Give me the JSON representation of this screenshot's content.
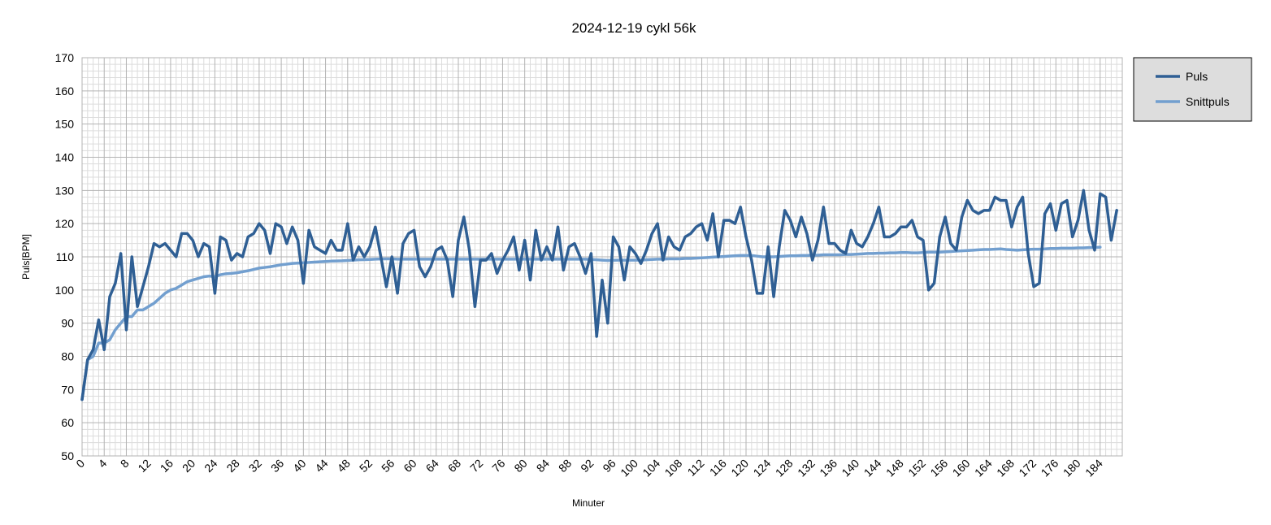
{
  "chart_data": {
    "type": "line",
    "title": "2024-12-19 cykl 56k",
    "xlabel": "Minuter",
    "ylabel": "Puls[BPM]",
    "xlim": [
      0,
      188
    ],
    "ylim": [
      50,
      170
    ],
    "y_ticks": [
      50,
      60,
      70,
      80,
      90,
      100,
      110,
      120,
      130,
      140,
      150,
      160,
      170
    ],
    "x_ticks": [
      0,
      4,
      8,
      12,
      16,
      20,
      24,
      28,
      32,
      36,
      40,
      44,
      48,
      52,
      56,
      60,
      64,
      68,
      72,
      76,
      80,
      84,
      88,
      92,
      96,
      100,
      104,
      108,
      112,
      116,
      120,
      124,
      128,
      132,
      136,
      140,
      144,
      148,
      152,
      156,
      160,
      164,
      168,
      172,
      176,
      180,
      184
    ],
    "grid": true,
    "legend_position": "right",
    "series": [
      {
        "name": "Puls",
        "color": "#2f5f94",
        "values": [
          67,
          79,
          82,
          91,
          82,
          98,
          102,
          111,
          88,
          110,
          95,
          101,
          107,
          114,
          113,
          114,
          112,
          110,
          117,
          117,
          115,
          110,
          114,
          113,
          99,
          116,
          115,
          109,
          111,
          110,
          116,
          117,
          120,
          118,
          111,
          120,
          119,
          114,
          119,
          115,
          102,
          118,
          113,
          112,
          111,
          115,
          112,
          112,
          120,
          109,
          113,
          110,
          113,
          119,
          110,
          101,
          110,
          99,
          114,
          117,
          118,
          107,
          104,
          107,
          112,
          113,
          109,
          98,
          115,
          122,
          112,
          95,
          109,
          109,
          111,
          105,
          109,
          112,
          116,
          106,
          115,
          103,
          118,
          109,
          113,
          109,
          119,
          106,
          113,
          114,
          110,
          105,
          111,
          86,
          103,
          90,
          116,
          113,
          103,
          113,
          111,
          108,
          112,
          117,
          120,
          109,
          116,
          113,
          112,
          116,
          117,
          119,
          120,
          115,
          123,
          110,
          121,
          121,
          120,
          125,
          116,
          109,
          99,
          99,
          113,
          98,
          113,
          124,
          121,
          116,
          122,
          117,
          109,
          115,
          125,
          114,
          114,
          112,
          111,
          118,
          114,
          113,
          116,
          120,
          125,
          116,
          116,
          117,
          119,
          119,
          121,
          116,
          115,
          100,
          102,
          116,
          122,
          114,
          112,
          122,
          127,
          124,
          123,
          124,
          124,
          128,
          127,
          127,
          119,
          125,
          128,
          111,
          101,
          102,
          123,
          126,
          118,
          126,
          127,
          116,
          121,
          130,
          118,
          112,
          129,
          128,
          115,
          124
        ]
      },
      {
        "name": "Snittpuls",
        "color": "#729fcf",
        "values": [
          67,
          79,
          80,
          84,
          84,
          85,
          88,
          90,
          92,
          92,
          94,
          94,
          95,
          96,
          97.5,
          99,
          100,
          100.5,
          101.5,
          102.5,
          103,
          103.5,
          104,
          104.2,
          104,
          104.6,
          104.9,
          105,
          105.2,
          105.5,
          105.8,
          106.2,
          106.6,
          106.8,
          107,
          107.3,
          107.6,
          107.8,
          108,
          108.1,
          108.2,
          108.3,
          108.4,
          108.5,
          108.6,
          108.7,
          108.75,
          108.8,
          108.9,
          109,
          109.1,
          109.15,
          109.2,
          109.3,
          109.35,
          109.4,
          109.4,
          109.3,
          109.3,
          109.3,
          109.3,
          109.3,
          109.3,
          109.3,
          109.3,
          109.3,
          109.3,
          109.3,
          109.3,
          109.3,
          109.3,
          109.3,
          109.3,
          109.3,
          109.3,
          109.3,
          109.3,
          109.3,
          109.3,
          109.3,
          109.3,
          109.3,
          109.3,
          109.3,
          109.3,
          109.3,
          109.3,
          109.3,
          109.3,
          109.3,
          109.3,
          109.3,
          109.2,
          109.1,
          109,
          108.9,
          108.95,
          109,
          109,
          109,
          109,
          109,
          109.1,
          109.2,
          109.3,
          109.3,
          109.4,
          109.4,
          109.4,
          109.5,
          109.5,
          109.6,
          109.7,
          109.8,
          109.9,
          110,
          110.1,
          110.2,
          110.3,
          110.4,
          110.4,
          110.4,
          110.2,
          110,
          110,
          110,
          110.1,
          110.2,
          110.3,
          110.3,
          110.4,
          110.4,
          110.5,
          110.5,
          110.6,
          110.6,
          110.6,
          110.6,
          110.7,
          110.7,
          110.8,
          110.9,
          111,
          111,
          111.1,
          111.1,
          111.2,
          111.2,
          111.3,
          111.3,
          111.2,
          111.2,
          111.3,
          111.4,
          111.4,
          111.4,
          111.5,
          111.6,
          111.7,
          111.8,
          111.9,
          112,
          112.1,
          112.2,
          112.2,
          112.3,
          112.4,
          112.2,
          112.1,
          112,
          112.1,
          112.2,
          112.3,
          112.3,
          112.4,
          112.5,
          112.5,
          112.6,
          112.6,
          112.6,
          112.7,
          112.7,
          112.8,
          112.8,
          112.9
        ]
      }
    ]
  }
}
